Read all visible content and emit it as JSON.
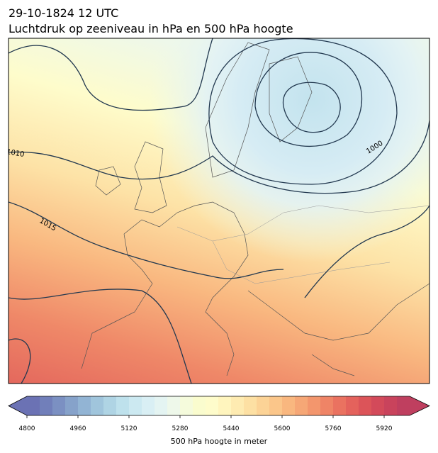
{
  "header": {
    "line1": "29-10-1824 12 UTC",
    "line2": "Luchtdruk op zeeniveau in hPa en 500 hPa hoogte"
  },
  "map": {
    "contour_labels": [
      "1010",
      "1015",
      "1000"
    ]
  },
  "colorbar": {
    "label": "500 hPa hoogte in meter",
    "lim": [
      4800,
      6000
    ],
    "ticks": [
      4800,
      4960,
      5120,
      5280,
      5440,
      5600,
      5760,
      5920
    ],
    "colors": [
      "#6b72b4",
      "#717fba",
      "#7b90c2",
      "#86a2ca",
      "#92b4d4",
      "#a0c5dc",
      "#afd4e4",
      "#bee1ec",
      "#cce9f1",
      "#d9eff4",
      "#e4f4f2",
      "#eef8ea",
      "#f5fbdc",
      "#fafcce",
      "#fefccb",
      "#fff5be",
      "#feebb1",
      "#fde0a3",
      "#fcd396",
      "#fbc68a",
      "#f9b77f",
      "#f6a776",
      "#f3966d",
      "#ef8466",
      "#ea7260",
      "#e4625c",
      "#dc5459",
      "#d34a5a",
      "#c9435c",
      "#bf3f5f"
    ]
  }
}
